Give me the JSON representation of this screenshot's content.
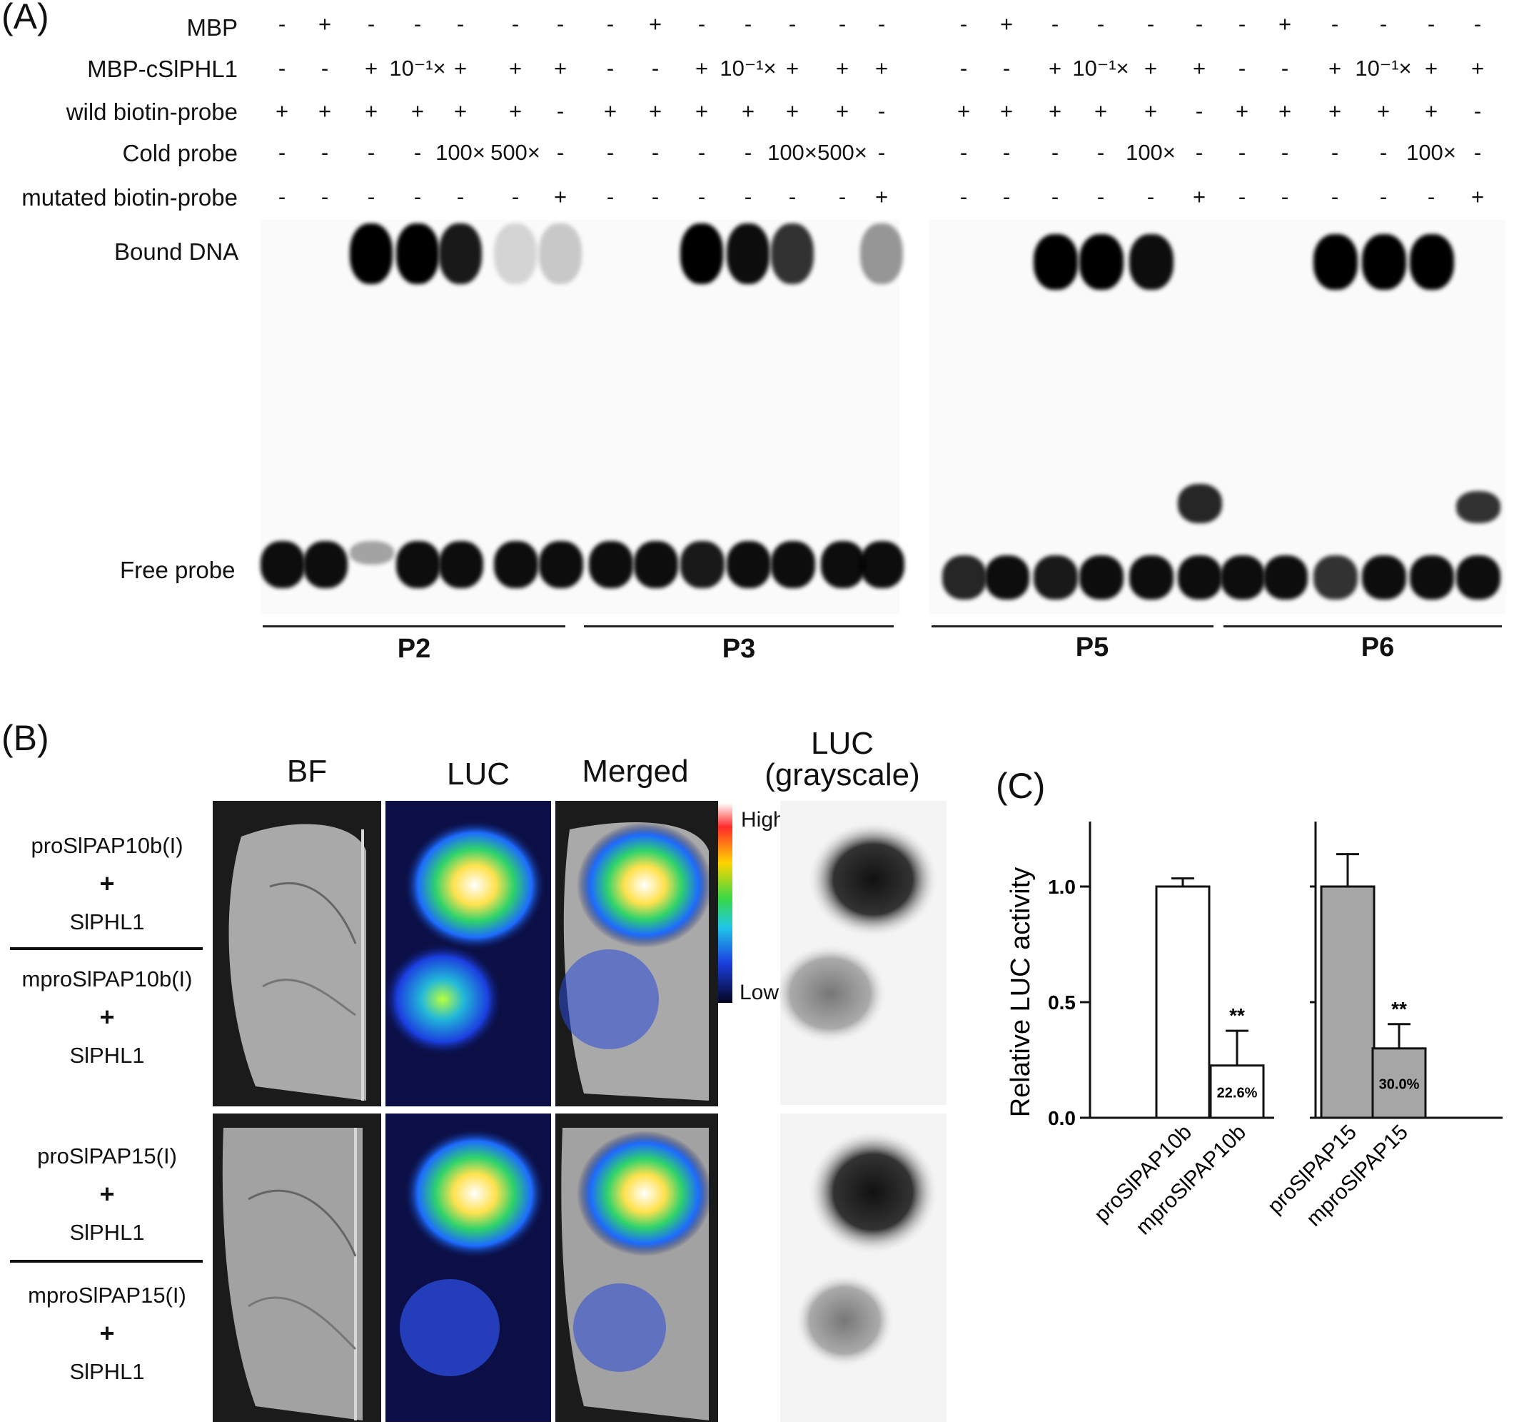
{
  "panels": {
    "a": "(A)",
    "b": "(B)",
    "c": "(C)"
  },
  "emsa": {
    "row_labels": [
      "MBP",
      "MBP-cSlPHL1",
      "wild biotin-probe",
      "Cold probe",
      "mutated biotin-probe"
    ],
    "left_rows": [
      [
        "-",
        "+",
        "-",
        "-",
        "-",
        "-",
        "-",
        "-",
        "+",
        "-",
        "-",
        "-",
        "-",
        "-"
      ],
      [
        "-",
        "-",
        "+",
        "10⁻¹×",
        "+",
        "+",
        "+",
        "-",
        "-",
        "+",
        "10⁻¹×",
        "+",
        "+",
        "+"
      ],
      [
        "+",
        "+",
        "+",
        "+",
        "+",
        "+",
        "-",
        "+",
        "+",
        "+",
        "+",
        "+",
        "+",
        "-"
      ],
      [
        "-",
        "-",
        "-",
        "-",
        "100×",
        "500×",
        "-",
        "-",
        "-",
        "-",
        "-",
        "100×",
        "500×",
        "-"
      ],
      [
        "-",
        "-",
        "-",
        "-",
        "-",
        "-",
        "+",
        "-",
        "-",
        "-",
        "-",
        "-",
        "-",
        "+"
      ]
    ],
    "right_rows": [
      [
        "-",
        "+",
        "-",
        "-",
        "-",
        "-",
        "-",
        "+",
        "-",
        "-",
        "-",
        "-"
      ],
      [
        "-",
        "-",
        "+",
        "10⁻¹×",
        "+",
        "+",
        "-",
        "-",
        "+",
        "10⁻¹×",
        "+",
        "+"
      ],
      [
        "+",
        "+",
        "+",
        "+",
        "+",
        "-",
        "+",
        "+",
        "+",
        "+",
        "+",
        "-"
      ],
      [
        "-",
        "-",
        "-",
        "-",
        "100×",
        "-",
        "-",
        "-",
        "-",
        "-",
        "100×",
        "-"
      ],
      [
        "-",
        "-",
        "-",
        "-",
        "-",
        "+",
        "-",
        "-",
        "-",
        "-",
        "-",
        "+"
      ]
    ],
    "bound_label": "Bound DNA",
    "free_label": "Free probe",
    "groups": [
      "P2",
      "P3",
      "P5",
      "P6"
    ]
  },
  "luc_panel": {
    "headers": [
      "BF",
      "LUC",
      "Merged",
      "LUC\n(grayscale)"
    ],
    "colorbar_high": "High",
    "colorbar_low": "Low",
    "row_labels": [
      [
        "proSlPAP10b(I)",
        "+",
        "SlPHL1"
      ],
      [
        "mproSlPAP10b(I)",
        "+",
        "SlPHL1"
      ],
      [
        "proSlPAP15(I)",
        "+",
        "SlPHL1"
      ],
      [
        "mproSlPAP15(I)",
        "+",
        "SlPHL1"
      ]
    ]
  },
  "chart_data": {
    "type": "bar",
    "ylabel": "Relative LUC activity",
    "ylim": [
      0,
      1.25
    ],
    "yticks": [
      "0.0",
      "0.5",
      "1.0"
    ],
    "categories": [
      "proSlPAP10b",
      "mproSlPAP10b",
      "proSlPAP15",
      "mproSlPAP15"
    ],
    "values": [
      1.0,
      0.226,
      1.0,
      0.3
    ],
    "errors": [
      0.035,
      0.15,
      0.14,
      0.105
    ],
    "bar_labels": [
      "",
      "22.6%",
      "",
      "30.0%"
    ],
    "significance": [
      "",
      "**",
      "",
      "**"
    ],
    "colors": [
      "#ffffff",
      "#ffffff",
      "#a6a6a6",
      "#a6a6a6"
    ]
  }
}
